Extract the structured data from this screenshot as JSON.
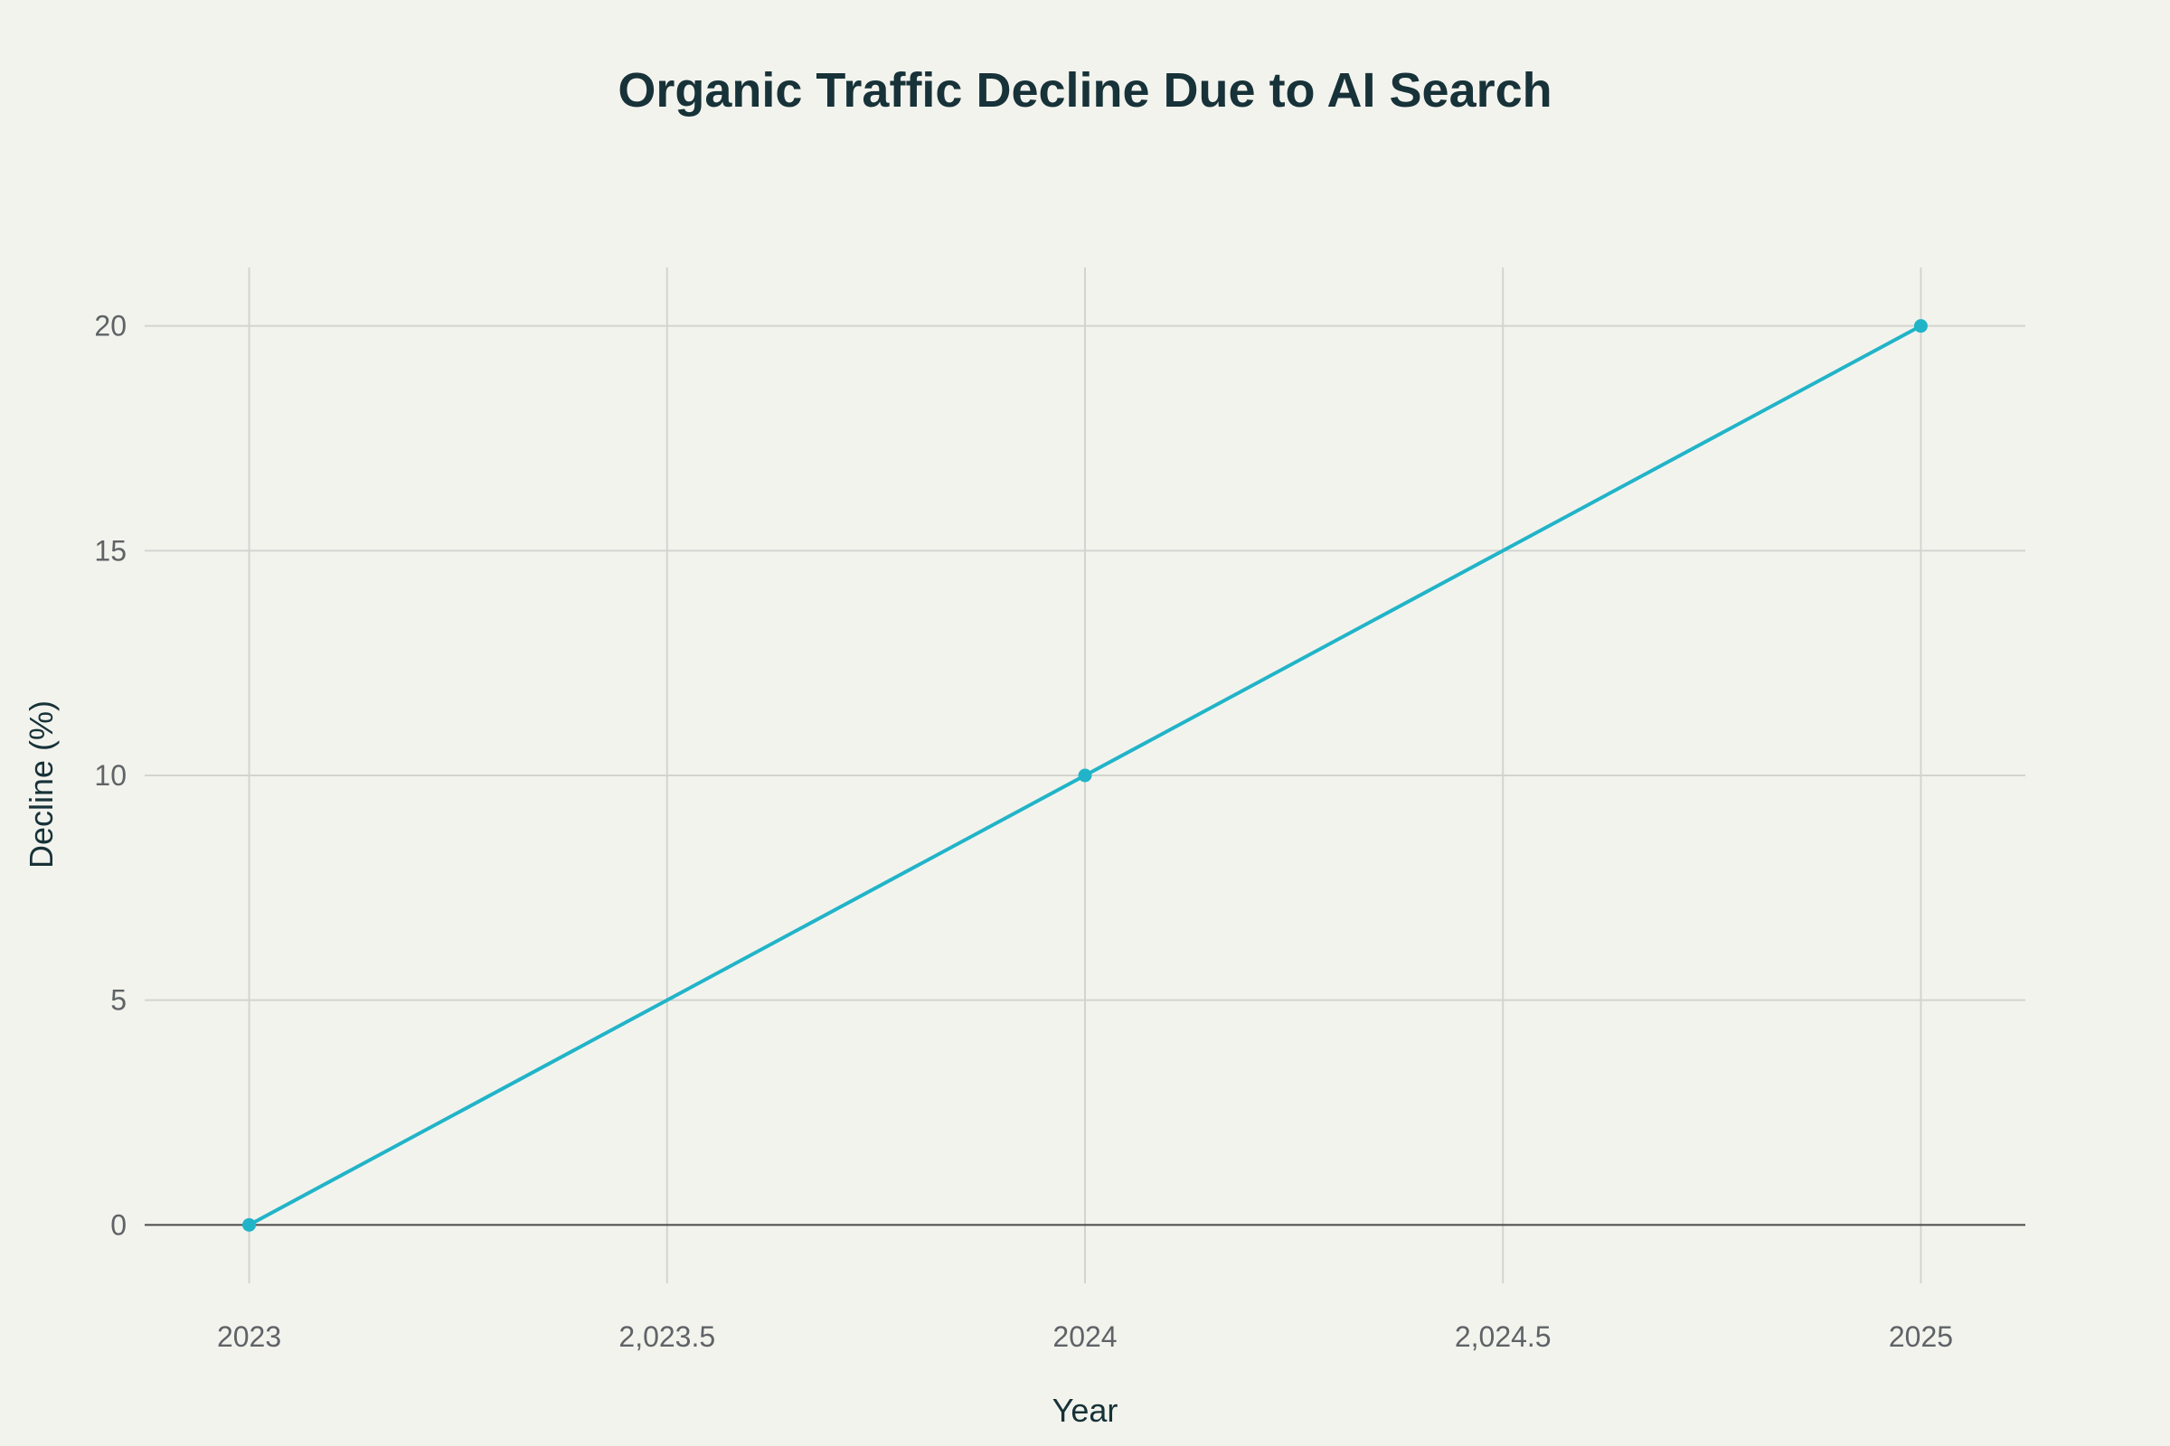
{
  "chart_data": {
    "type": "line",
    "title": "Organic Traffic Decline Due to AI Search",
    "xlabel": "Year",
    "ylabel": "Decline (%)",
    "x": [
      2023,
      2024,
      2025
    ],
    "series": [
      {
        "values": [
          0,
          10,
          20
        ],
        "color": "#21b4c8"
      }
    ],
    "xlim": [
      2022.875,
      2025.125
    ],
    "ylim": [
      -1.3,
      21.3
    ],
    "x_ticks": [
      2023,
      2023.5,
      2024,
      2024.5,
      2025
    ],
    "x_tick_labels": [
      "2023",
      "2,023.5",
      "2024",
      "2,024.5",
      "2025"
    ],
    "y_ticks": [
      0,
      5,
      10,
      15,
      20
    ],
    "y_tick_labels": [
      "0",
      "5",
      "10",
      "15",
      "20"
    ],
    "grid": true,
    "legend": "none"
  }
}
